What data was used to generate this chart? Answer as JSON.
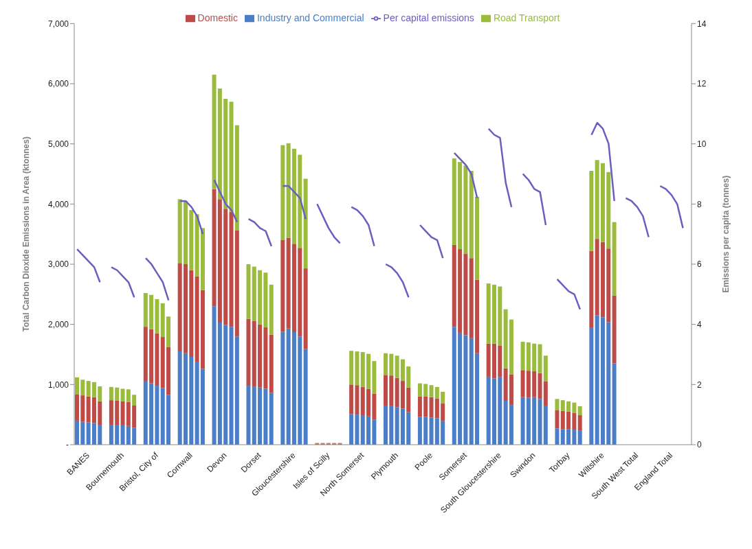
{
  "chart_data": {
    "type": "bar",
    "stacked": true,
    "legend": "top",
    "grid": false,
    "marker": "none",
    "ylabel": "Total Carbon Dioxide Emissions in Area (ktonnes)",
    "y2label": "Emissions per capita (tonnes)",
    "categories": [
      null,
      null,
      "BANES",
      null,
      null,
      null,
      null,
      null,
      "Bournemouth",
      null,
      null,
      null,
      null,
      null,
      "Bristol, City of",
      null,
      null,
      null,
      null,
      null,
      "Cornwall",
      null,
      null,
      null,
      null,
      null,
      "Devon",
      null,
      null,
      null,
      null,
      null,
      "Dorset",
      null,
      null,
      null,
      null,
      null,
      "Gloucestershire",
      null,
      null,
      null,
      null,
      null,
      "Isles of Scilly",
      null,
      null,
      null,
      null,
      null,
      "North Somerset",
      null,
      null,
      null,
      null,
      null,
      "Plymouth",
      null,
      null,
      null,
      null,
      null,
      "Poole",
      null,
      null,
      null,
      null,
      null,
      "Somerset",
      null,
      null,
      null,
      null,
      null,
      "South Gloucestershire",
      null,
      null,
      null,
      null,
      null,
      "Swindon",
      null,
      null,
      null,
      null,
      null,
      "Torbay",
      null,
      null,
      null,
      null,
      null,
      "Wiltshire",
      null,
      null,
      null,
      null,
      null,
      "South West Total",
      null,
      null,
      null,
      null,
      null,
      "England Total",
      null,
      null,
      null
    ],
    "ylim": [
      0,
      7000
    ],
    "yticks": [
      {
        "value": 0,
        "label": "-"
      },
      {
        "value": 1000,
        "label": "1,000"
      },
      {
        "value": 2000,
        "label": "2,000"
      },
      {
        "value": 3000,
        "label": "3,000"
      },
      {
        "value": 4000,
        "label": "4,000"
      },
      {
        "value": 5000,
        "label": "5,000"
      },
      {
        "value": 6000,
        "label": "6,000"
      },
      {
        "value": 7000,
        "label": "7,000"
      }
    ],
    "y2lim": [
      0,
      14
    ],
    "y2ticks": [
      0,
      2,
      4,
      6,
      8,
      10,
      12,
      14
    ],
    "series": [
      {
        "name": "Industry and Commercial",
        "color": "#4a7ec8",
        "values": [
          400,
          380,
          370,
          360,
          330,
          null,
          330,
          330,
          320,
          310,
          280,
          null,
          1050,
          1020,
          980,
          940,
          830,
          null,
          1550,
          1520,
          1460,
          1380,
          1260,
          null,
          2300,
          2030,
          1990,
          1960,
          1800,
          null,
          980,
          960,
          950,
          930,
          860,
          null,
          1880,
          1930,
          1870,
          1800,
          1590,
          null,
          10,
          10,
          10,
          10,
          10,
          null,
          510,
          500,
          490,
          470,
          420,
          null,
          640,
          640,
          620,
          600,
          540,
          null,
          460,
          460,
          450,
          440,
          390,
          null,
          1960,
          1860,
          1820,
          1770,
          1520,
          null,
          1130,
          1100,
          1120,
          730,
          660,
          null,
          790,
          780,
          790,
          760,
          650,
          null,
          270,
          260,
          260,
          250,
          230,
          null,
          1940,
          2150,
          2120,
          2040,
          1350,
          null,
          null,
          null,
          null,
          null,
          null,
          null,
          null,
          null,
          null,
          null,
          null,
          null
        ]
      },
      {
        "name": "Domestic",
        "color": "#be4b48",
        "values": [
          440,
          440,
          430,
          430,
          390,
          null,
          410,
          400,
          400,
          400,
          370,
          null,
          910,
          900,
          870,
          850,
          790,
          null,
          1470,
          1480,
          1440,
          1420,
          1310,
          null,
          1950,
          2050,
          1930,
          1910,
          1760,
          null,
          1110,
          1100,
          1050,
          1020,
          970,
          null,
          1520,
          1510,
          1470,
          1470,
          1340,
          null,
          10,
          10,
          10,
          10,
          10,
          null,
          490,
          490,
          470,
          460,
          430,
          null,
          520,
          510,
          490,
          460,
          410,
          null,
          340,
          340,
          340,
          330,
          300,
          null,
          1360,
          1390,
          1350,
          1330,
          1220,
          null,
          550,
          580,
          530,
          540,
          510,
          null,
          450,
          450,
          430,
          430,
          400,
          null,
          300,
          300,
          290,
          280,
          260,
          null,
          1280,
          1270,
          1250,
          1220,
          1130,
          null,
          null,
          null,
          null,
          null,
          null,
          null,
          null,
          null,
          null,
          null,
          null,
          null
        ]
      },
      {
        "name": "Road Transport",
        "color": "#9bbb3c",
        "values": [
          280,
          260,
          260,
          250,
          250,
          null,
          220,
          220,
          210,
          210,
          180,
          null,
          560,
          570,
          570,
          560,
          510,
          null,
          1060,
          1050,
          1000,
          1030,
          1030,
          null,
          1900,
          1840,
          1830,
          1830,
          1750,
          null,
          910,
          900,
          900,
          910,
          830,
          null,
          1580,
          1570,
          1580,
          1550,
          1490,
          null,
          10,
          10,
          10,
          10,
          10,
          null,
          560,
          560,
          580,
          580,
          540,
          null,
          360,
          360,
          370,
          360,
          350,
          null,
          220,
          210,
          200,
          190,
          190,
          null,
          1440,
          1450,
          1470,
          1450,
          1380,
          null,
          1000,
          980,
          980,
          980,
          910,
          null,
          470,
          470,
          460,
          480,
          430,
          null,
          190,
          180,
          170,
          170,
          150,
          null,
          1330,
          1310,
          1310,
          1270,
          1220,
          null,
          null,
          null,
          null,
          null,
          null,
          null,
          null,
          null,
          null,
          null,
          null,
          null
        ]
      },
      {
        "name": "Per capital emissions",
        "type": "line",
        "axis": "y2",
        "color": "#6a5fc0",
        "values": [
          6.5,
          6.3,
          6.1,
          5.9,
          5.4,
          null,
          5.9,
          5.8,
          5.6,
          5.4,
          4.9,
          null,
          6.2,
          6.0,
          5.7,
          5.4,
          4.8,
          null,
          8.1,
          8.1,
          7.9,
          7.6,
          7.0,
          null,
          8.8,
          8.4,
          8.0,
          7.8,
          7.4,
          null,
          7.5,
          7.4,
          7.2,
          7.1,
          6.6,
          null,
          8.6,
          8.6,
          8.4,
          8.2,
          7.5,
          null,
          8.0,
          7.6,
          7.2,
          6.9,
          6.7,
          null,
          7.9,
          7.8,
          7.6,
          7.3,
          6.6,
          null,
          6.0,
          5.9,
          5.7,
          5.4,
          4.9,
          null,
          7.3,
          7.1,
          6.9,
          6.8,
          6.2,
          null,
          9.7,
          9.5,
          9.3,
          9.0,
          8.2,
          null,
          10.5,
          10.3,
          10.2,
          8.7,
          7.9,
          null,
          9.0,
          8.8,
          8.5,
          8.4,
          7.3,
          null,
          5.5,
          5.3,
          5.1,
          5.0,
          4.5,
          null,
          10.3,
          10.7,
          10.5,
          10.0,
          8.1,
          null,
          8.2,
          8.1,
          7.9,
          7.6,
          6.9,
          null,
          8.6,
          8.5,
          8.3,
          8.0,
          7.2,
          null
        ]
      }
    ]
  }
}
